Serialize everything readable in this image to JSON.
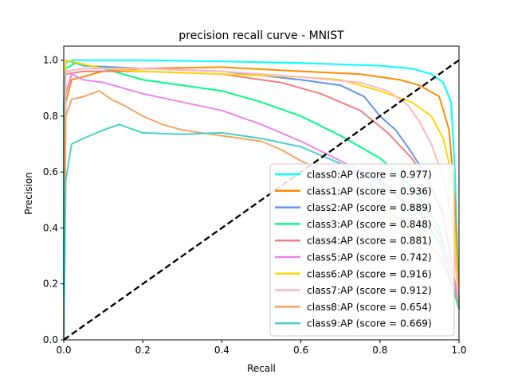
{
  "chart_data": {
    "type": "line",
    "title": "precision recall curve - MNIST",
    "xlabel": "Recall",
    "ylabel": "Precision",
    "xlim": [
      0.0,
      1.0
    ],
    "ylim": [
      0.0,
      1.05
    ],
    "xticks": [
      "0.0",
      "0.2",
      "0.4",
      "0.6",
      "0.8",
      "1.0"
    ],
    "yticks": [
      "0.0",
      "0.2",
      "0.4",
      "0.6",
      "0.8",
      "1.0"
    ],
    "grid": false,
    "legend_position": "lower right",
    "diagonal": {
      "style": "dashed",
      "color": "#000000",
      "points": [
        [
          0,
          0
        ],
        [
          1,
          1
        ]
      ]
    },
    "series": [
      {
        "name": "class0:AP (score = 0.977)",
        "color": "#00FFFF",
        "points": [
          [
            0.0,
            0.0
          ],
          [
            0.0,
            0.85
          ],
          [
            0.005,
            0.99
          ],
          [
            0.02,
            1.0
          ],
          [
            0.2,
            1.0
          ],
          [
            0.4,
            0.995
          ],
          [
            0.6,
            0.99
          ],
          [
            0.8,
            0.98
          ],
          [
            0.88,
            0.97
          ],
          [
            0.93,
            0.95
          ],
          [
            0.96,
            0.92
          ],
          [
            0.98,
            0.85
          ],
          [
            0.99,
            0.6
          ],
          [
            1.0,
            0.13
          ]
        ]
      },
      {
        "name": "class1:AP (score = 0.936)",
        "color": "#FF8C00",
        "points": [
          [
            0.0,
            0.0
          ],
          [
            0.005,
            0.85
          ],
          [
            0.02,
            0.93
          ],
          [
            0.1,
            0.96
          ],
          [
            0.2,
            0.97
          ],
          [
            0.4,
            0.975
          ],
          [
            0.6,
            0.96
          ],
          [
            0.75,
            0.95
          ],
          [
            0.85,
            0.93
          ],
          [
            0.9,
            0.91
          ],
          [
            0.95,
            0.87
          ],
          [
            0.975,
            0.75
          ],
          [
            0.99,
            0.5
          ],
          [
            1.0,
            0.11
          ]
        ]
      },
      {
        "name": "class2:AP (score = 0.889)",
        "color": "#6495ED",
        "points": [
          [
            0.0,
            0.0
          ],
          [
            0.005,
            1.0
          ],
          [
            0.05,
            0.98
          ],
          [
            0.2,
            0.97
          ],
          [
            0.4,
            0.96
          ],
          [
            0.6,
            0.93
          ],
          [
            0.7,
            0.91
          ],
          [
            0.76,
            0.87
          ],
          [
            0.8,
            0.8
          ],
          [
            0.84,
            0.75
          ],
          [
            0.88,
            0.67
          ],
          [
            0.92,
            0.58
          ],
          [
            0.96,
            0.45
          ],
          [
            1.0,
            0.11
          ]
        ]
      },
      {
        "name": "class3:AP (score = 0.848)",
        "color": "#00FF7F",
        "points": [
          [
            0.0,
            0.0
          ],
          [
            0.005,
            0.97
          ],
          [
            0.03,
            0.99
          ],
          [
            0.1,
            0.97
          ],
          [
            0.2,
            0.93
          ],
          [
            0.3,
            0.91
          ],
          [
            0.4,
            0.89
          ],
          [
            0.5,
            0.85
          ],
          [
            0.6,
            0.8
          ],
          [
            0.7,
            0.73
          ],
          [
            0.8,
            0.65
          ],
          [
            0.88,
            0.55
          ],
          [
            0.95,
            0.4
          ],
          [
            1.0,
            0.12
          ]
        ]
      },
      {
        "name": "class4:AP (score = 0.881)",
        "color": "#F08080",
        "points": [
          [
            0.0,
            0.0
          ],
          [
            0.005,
            0.95
          ],
          [
            0.05,
            0.96
          ],
          [
            0.2,
            0.96
          ],
          [
            0.4,
            0.95
          ],
          [
            0.55,
            0.92
          ],
          [
            0.65,
            0.88
          ],
          [
            0.75,
            0.82
          ],
          [
            0.82,
            0.74
          ],
          [
            0.88,
            0.65
          ],
          [
            0.92,
            0.57
          ],
          [
            0.96,
            0.45
          ],
          [
            1.0,
            0.12
          ]
        ]
      },
      {
        "name": "class5:AP (score = 0.742)",
        "color": "#EE82EE",
        "points": [
          [
            0.0,
            0.0
          ],
          [
            0.005,
            0.88
          ],
          [
            0.02,
            0.95
          ],
          [
            0.05,
            0.93
          ],
          [
            0.1,
            0.92
          ],
          [
            0.2,
            0.88
          ],
          [
            0.3,
            0.85
          ],
          [
            0.4,
            0.82
          ],
          [
            0.5,
            0.77
          ],
          [
            0.6,
            0.71
          ],
          [
            0.7,
            0.64
          ],
          [
            0.8,
            0.57
          ],
          [
            0.9,
            0.46
          ],
          [
            0.95,
            0.38
          ],
          [
            1.0,
            0.14
          ]
        ]
      },
      {
        "name": "class6:AP (score = 0.916)",
        "color": "#FFD700",
        "points": [
          [
            0.0,
            0.0
          ],
          [
            0.005,
            1.0
          ],
          [
            0.1,
            0.97
          ],
          [
            0.2,
            0.96
          ],
          [
            0.4,
            0.95
          ],
          [
            0.6,
            0.94
          ],
          [
            0.7,
            0.93
          ],
          [
            0.8,
            0.89
          ],
          [
            0.88,
            0.85
          ],
          [
            0.93,
            0.8
          ],
          [
            0.96,
            0.72
          ],
          [
            0.98,
            0.6
          ],
          [
            1.0,
            0.12
          ]
        ]
      },
      {
        "name": "class7:AP (score = 0.912)",
        "color": "#FFB6C1",
        "points": [
          [
            0.0,
            0.0
          ],
          [
            0.005,
            0.96
          ],
          [
            0.05,
            0.97
          ],
          [
            0.2,
            0.97
          ],
          [
            0.4,
            0.96
          ],
          [
            0.6,
            0.94
          ],
          [
            0.75,
            0.92
          ],
          [
            0.82,
            0.89
          ],
          [
            0.87,
            0.84
          ],
          [
            0.9,
            0.78
          ],
          [
            0.93,
            0.7
          ],
          [
            0.96,
            0.58
          ],
          [
            0.98,
            0.45
          ],
          [
            1.0,
            0.12
          ]
        ]
      },
      {
        "name": "class8:AP (score = 0.654)",
        "color": "#F4A460",
        "points": [
          [
            0.0,
            0.0
          ],
          [
            0.005,
            0.8
          ],
          [
            0.02,
            0.86
          ],
          [
            0.05,
            0.87
          ],
          [
            0.09,
            0.89
          ],
          [
            0.12,
            0.86
          ],
          [
            0.15,
            0.84
          ],
          [
            0.2,
            0.8
          ],
          [
            0.25,
            0.77
          ],
          [
            0.3,
            0.75
          ],
          [
            0.4,
            0.73
          ],
          [
            0.5,
            0.71
          ],
          [
            0.55,
            0.68
          ],
          [
            0.6,
            0.64
          ],
          [
            0.7,
            0.57
          ],
          [
            0.8,
            0.48
          ],
          [
            0.9,
            0.38
          ],
          [
            0.95,
            0.3
          ],
          [
            1.0,
            0.13
          ]
        ]
      },
      {
        "name": "class9:AP (score = 0.669)",
        "color": "#48D1CC",
        "points": [
          [
            0.0,
            0.0
          ],
          [
            0.005,
            0.57
          ],
          [
            0.02,
            0.7
          ],
          [
            0.05,
            0.72
          ],
          [
            0.1,
            0.75
          ],
          [
            0.14,
            0.77
          ],
          [
            0.2,
            0.74
          ],
          [
            0.3,
            0.735
          ],
          [
            0.4,
            0.74
          ],
          [
            0.5,
            0.72
          ],
          [
            0.6,
            0.69
          ],
          [
            0.7,
            0.63
          ],
          [
            0.8,
            0.56
          ],
          [
            0.9,
            0.45
          ],
          [
            0.95,
            0.35
          ],
          [
            1.0,
            0.11
          ]
        ]
      }
    ]
  }
}
